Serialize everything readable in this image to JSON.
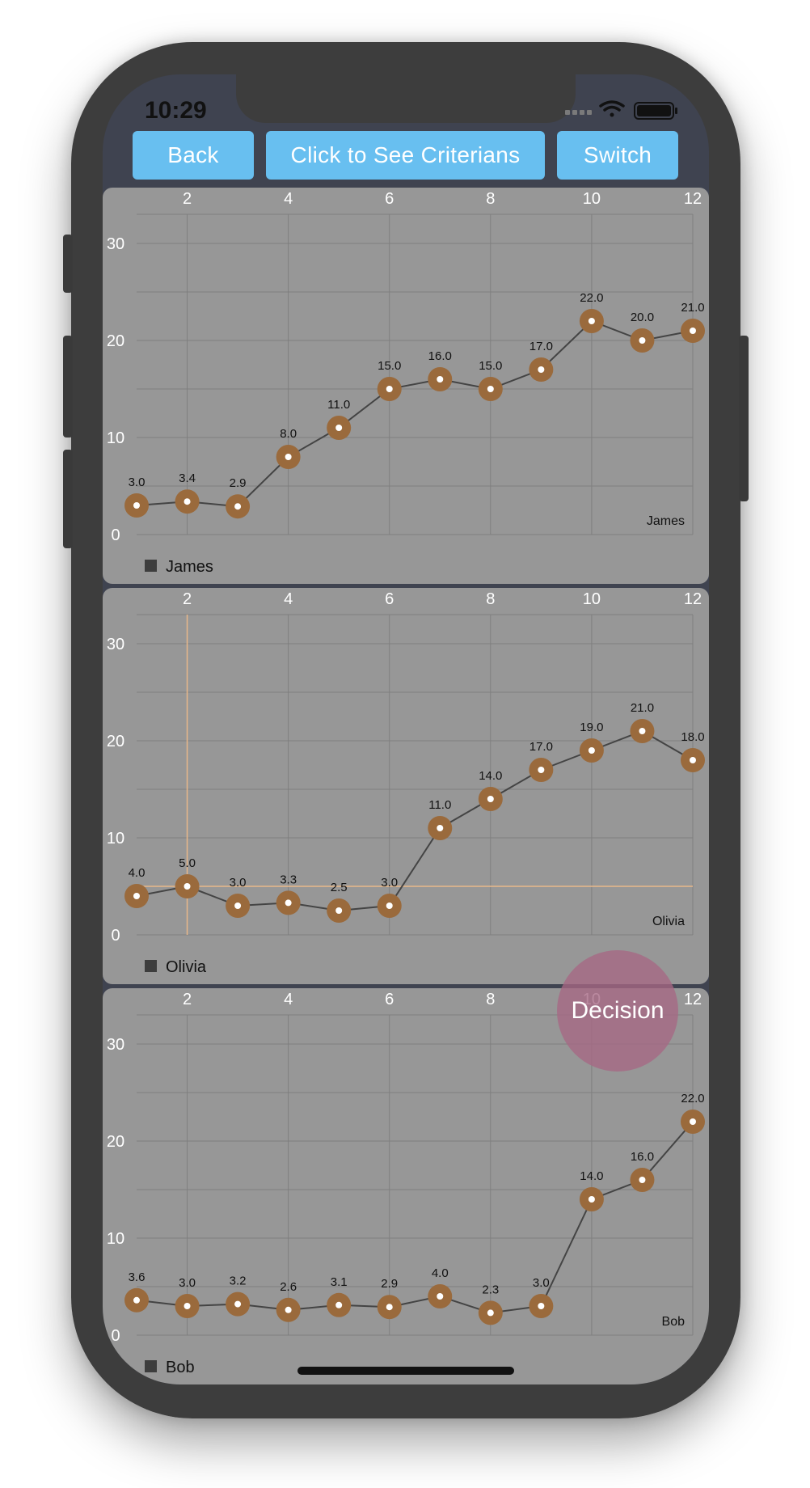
{
  "status_bar": {
    "time": "10:29"
  },
  "toolbar": {
    "back_label": "Back",
    "criterians_label": "Click to See Criterians",
    "switch_label": "Switch"
  },
  "decision_label": "Decision",
  "colors": {
    "point": "#9a6a3c",
    "line": "#444444",
    "panel": "#979797",
    "button": "#68bff0",
    "highlight": "#e9b88a"
  },
  "chart_data": [
    {
      "type": "line",
      "series": [
        {
          "name": "James",
          "x": [
            1,
            2,
            3,
            4,
            5,
            6,
            7,
            8,
            9,
            10,
            11,
            12
          ],
          "values": [
            3.0,
            3.4,
            2.9,
            8.0,
            11.0,
            15.0,
            16.0,
            15.0,
            17.0,
            22.0,
            20.0,
            21.0
          ]
        }
      ],
      "labels": [
        "3.0",
        "3.4",
        "2.9",
        "8.0",
        "11.0",
        "15.0",
        "16.0",
        "15.0",
        "17.0",
        "22.0",
        "20.0",
        "21.0"
      ],
      "xticks": [
        "2",
        "4",
        "6",
        "8",
        "10",
        "12"
      ],
      "yticks": [
        "0",
        "10",
        "20",
        "30"
      ],
      "description_label": "James",
      "legend": "James",
      "xlim": [
        1,
        12
      ],
      "ylim": [
        0,
        33
      ],
      "grid": true,
      "legend_position": "bottom-left"
    },
    {
      "type": "line",
      "series": [
        {
          "name": "Olivia",
          "x": [
            1,
            2,
            3,
            4,
            5,
            6,
            7,
            8,
            9,
            10,
            11,
            12
          ],
          "values": [
            4.0,
            5.0,
            3.0,
            3.3,
            2.5,
            3.0,
            11.0,
            14.0,
            17.0,
            19.0,
            21.0,
            18.0
          ]
        }
      ],
      "labels": [
        "4.0",
        "5.0",
        "3.0",
        "3.3",
        "2.5",
        "3.0",
        "11.0",
        "14.0",
        "17.0",
        "19.0",
        "21.0",
        "18.0"
      ],
      "xticks": [
        "2",
        "4",
        "6",
        "8",
        "10",
        "12"
      ],
      "yticks": [
        "0",
        "10",
        "20",
        "30"
      ],
      "description_label": "Olivia",
      "legend": "Olivia",
      "xlim": [
        1,
        12
      ],
      "ylim": [
        0,
        33
      ],
      "grid": true,
      "legend_position": "bottom-left",
      "highlight": {
        "x": 2,
        "y": 5.0
      }
    },
    {
      "type": "line",
      "series": [
        {
          "name": "Bob",
          "x": [
            1,
            2,
            3,
            4,
            5,
            6,
            7,
            8,
            9,
            10,
            11,
            12
          ],
          "values": [
            3.6,
            3.0,
            3.2,
            2.6,
            3.1,
            2.9,
            4.0,
            2.3,
            3.0,
            14.0,
            16.0,
            22.0
          ]
        }
      ],
      "labels": [
        "3.6",
        "3.0",
        "3.2",
        "2.6",
        "3.1",
        "2.9",
        "4.0",
        "2.3",
        "3.0",
        "14.0",
        "16.0",
        "22.0"
      ],
      "xticks": [
        "2",
        "4",
        "6",
        "8",
        "10",
        "12"
      ],
      "yticks": [
        "0",
        "10",
        "20",
        "30"
      ],
      "description_label": "Bob",
      "legend": "Bob",
      "xlim": [
        1,
        12
      ],
      "ylim": [
        0,
        33
      ],
      "grid": true,
      "legend_position": "bottom-left"
    }
  ]
}
